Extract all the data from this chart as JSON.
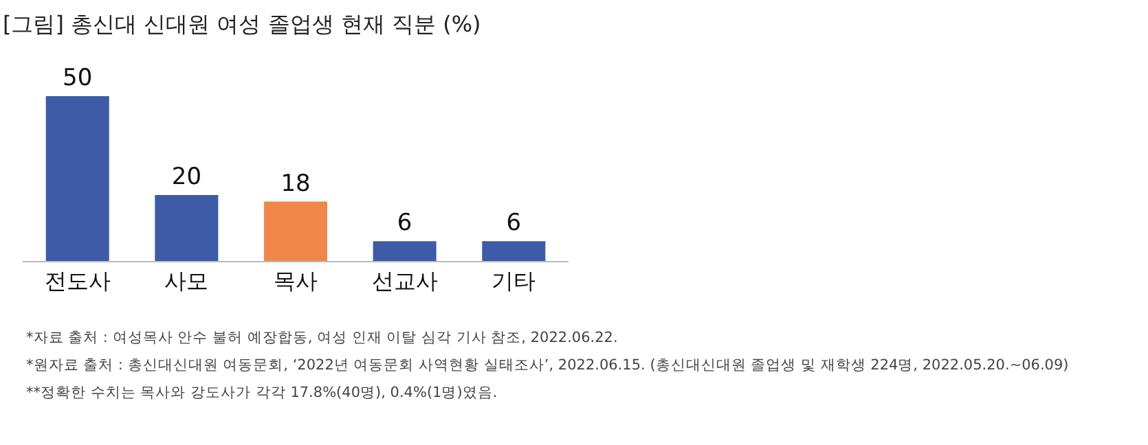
{
  "chart_data": {
    "type": "bar",
    "title": "[그림] 총신대 신대원 여성 졸업생 현재 직분 (%)",
    "categories": [
      "전도사",
      "사모",
      "목사",
      "선교사",
      "기타"
    ],
    "values": [
      50,
      20,
      18,
      6,
      6
    ],
    "colors": [
      "#3d5ba6",
      "#3d5ba6",
      "#f0864a",
      "#3d5ba6",
      "#3d5ba6"
    ],
    "data_labels": true,
    "annotations": [
      "*자료 출처 : 여성목사 안수 불허 예장합동, 여성 인재 이탈 심각 기사 참조, 2022.06.22.",
      "*원자료 출처 : 총신대신대원 여동문회, ‘2022년 여동문회 사역현황 실태조사’, 2022.06.15. (총신대신대원 졸업생 및 재학생 224명, 2022.05.20.~06.09)",
      "**정확한 수치는 목사와 강도사가 각각 17.8%(40명), 0.4%(1명)였음."
    ]
  }
}
